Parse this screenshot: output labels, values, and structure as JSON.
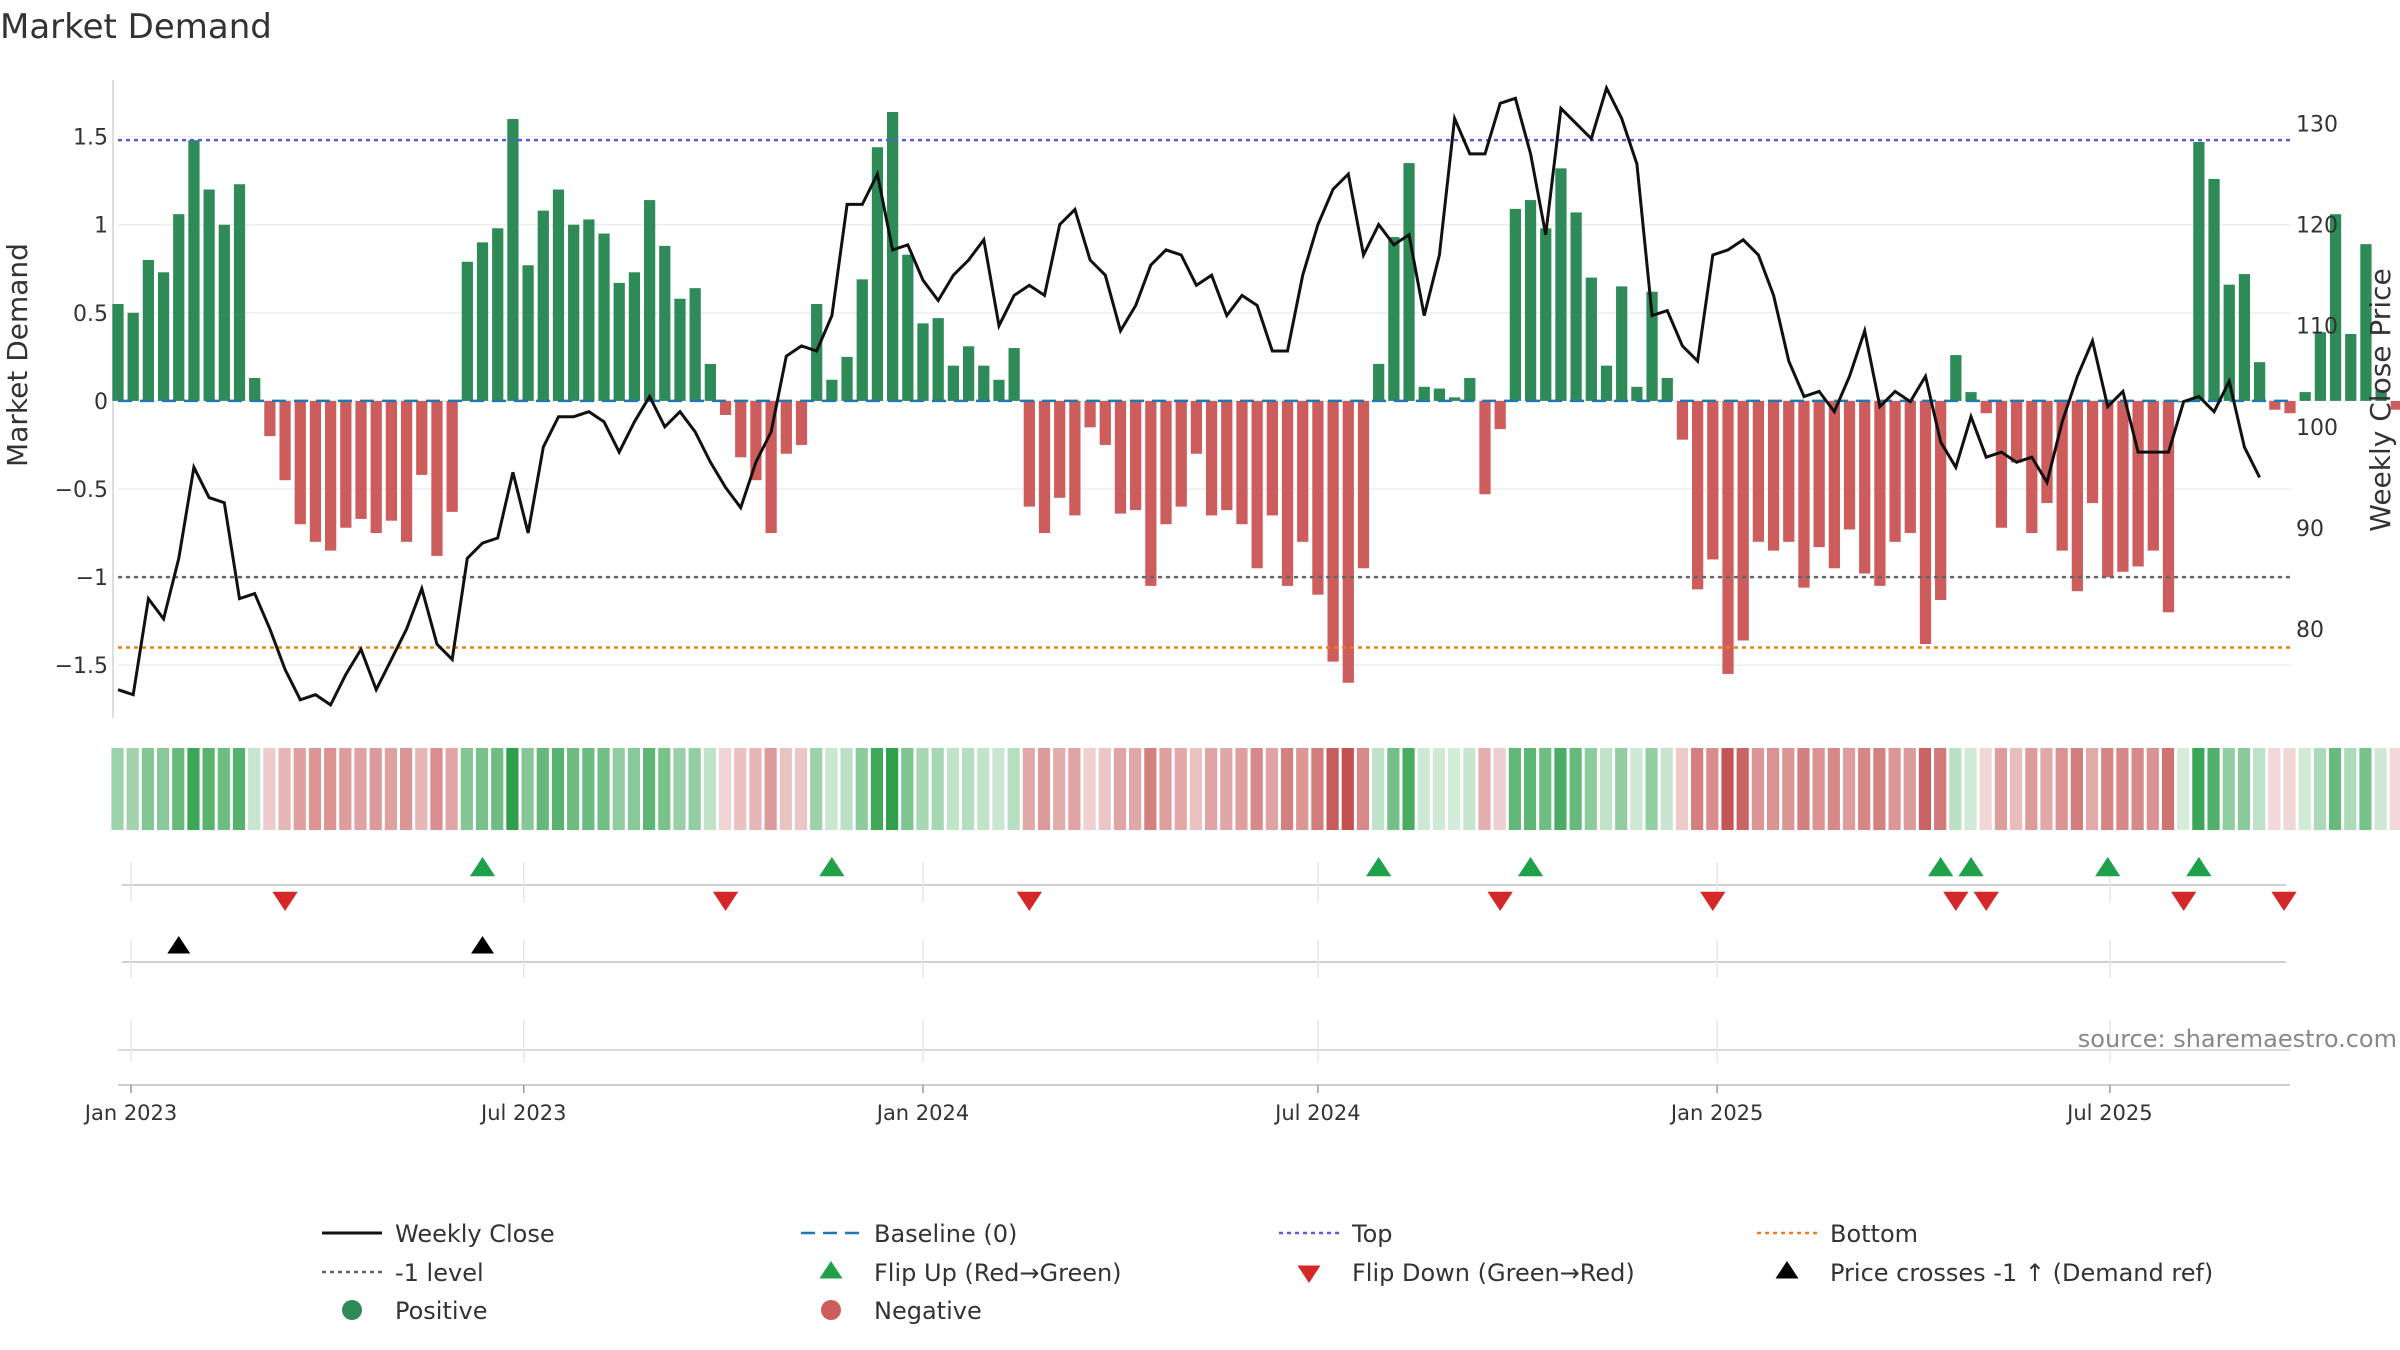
{
  "chart_data": {
    "type": "bar",
    "title": "Market Demand",
    "ylabel": "Market Demand",
    "ylabel_right": "Weekly Close Price",
    "ylim": [
      -1.8,
      1.85
    ],
    "ylim_right": [
      71.2,
      134.8
    ],
    "yticks": [
      1.5,
      1,
      0.5,
      0,
      -0.5,
      -1,
      -1.5
    ],
    "yticks_labels": [
      "1.5",
      "1",
      "0.5",
      "0",
      "−0.5",
      "−1",
      "−1.5"
    ],
    "yticks_right": [
      130,
      120,
      110,
      100,
      90,
      80
    ],
    "top_level": 1.48,
    "bottom_level": -1.4,
    "minus1_level": -1.0,
    "x_start": "2022-12-26",
    "x_end": "2025-09-22",
    "x_ticks": [
      {
        "date": "2023-01-01",
        "label": "Jan 2023"
      },
      {
        "date": "2023-07-01",
        "label": "Jul 2023"
      },
      {
        "date": "2024-01-01",
        "label": "Jan 2024"
      },
      {
        "date": "2024-07-01",
        "label": "Jul 2024"
      },
      {
        "date": "2025-01-01",
        "label": "Jan 2025"
      },
      {
        "date": "2025-07-01",
        "label": "Jul 2025"
      }
    ],
    "demand": [
      0.55,
      0.5,
      0.8,
      0.73,
      1.06,
      1.48,
      1.2,
      1.0,
      1.23,
      0.13,
      -0.2,
      -0.45,
      -0.7,
      -0.8,
      -0.85,
      -0.72,
      -0.67,
      -0.75,
      -0.68,
      -0.8,
      -0.42,
      -0.88,
      -0.63,
      0.79,
      0.9,
      0.98,
      1.6,
      0.77,
      1.08,
      1.2,
      1.0,
      1.03,
      0.95,
      0.67,
      0.73,
      1.14,
      0.88,
      0.58,
      0.64,
      0.21,
      -0.08,
      -0.32,
      -0.45,
      -0.75,
      -0.3,
      -0.25,
      0.55,
      0.12,
      0.25,
      0.69,
      1.44,
      1.64,
      0.83,
      0.44,
      0.47,
      0.2,
      0.31,
      0.2,
      0.12,
      0.3,
      -0.6,
      -0.75,
      -0.55,
      -0.65,
      -0.15,
      -0.25,
      -0.64,
      -0.62,
      -1.05,
      -0.7,
      -0.6,
      -0.3,
      -0.65,
      -0.62,
      -0.7,
      -0.95,
      -0.65,
      -1.05,
      -0.8,
      -1.1,
      -1.48,
      -1.6,
      -0.95,
      0.21,
      0.93,
      1.35,
      0.08,
      0.07,
      0.02,
      0.13,
      -0.53,
      -0.16,
      1.09,
      1.14,
      0.98,
      1.32,
      1.07,
      0.7,
      0.2,
      0.65,
      0.08,
      0.62,
      0.13,
      -0.22,
      -1.07,
      -0.9,
      -1.55,
      -1.36,
      -0.8,
      -0.85,
      -0.8,
      -1.06,
      -0.83,
      -0.95,
      -0.73,
      -0.98,
      -1.05,
      -0.8,
      -0.75,
      -1.38,
      -1.13,
      0.26,
      0.05,
      -0.07,
      -0.72,
      -0.35,
      -0.75,
      -0.58,
      -0.85,
      -1.08,
      -0.58,
      -1.0,
      -0.97,
      -0.94,
      -0.85,
      -1.2,
      0.0,
      1.47,
      1.26,
      0.66,
      0.72,
      0.22,
      -0.05,
      -0.07,
      0.05,
      0.39,
      1.06,
      0.38,
      0.89,
      0.06,
      -0.05
    ],
    "price_start": "2022-12-26",
    "price": [
      74,
      73.5,
      83,
      81,
      87,
      96,
      93,
      92.5,
      83,
      83.5,
      80,
      76,
      73,
      73.5,
      72.5,
      75.5,
      78,
      74,
      77,
      80,
      84,
      78.5,
      77,
      87,
      88.5,
      89,
      95.5,
      89.5,
      98,
      101,
      101,
      101.5,
      100.5,
      97.5,
      100.5,
      103,
      100,
      101.5,
      99.5,
      96.5,
      94,
      92,
      96.5,
      99.5,
      107,
      108,
      107.5,
      111,
      122,
      122,
      125,
      117.5,
      118,
      114.5,
      112.5,
      115,
      116.5,
      118.5,
      110,
      113,
      114,
      113,
      120,
      121.5,
      116.5,
      115,
      109.5,
      112,
      116,
      117.5,
      117,
      114,
      115,
      111,
      113,
      112,
      107.5,
      107.5,
      115,
      120,
      123.5,
      125,
      117,
      120,
      118,
      119,
      111,
      117,
      130.5,
      127,
      127,
      132,
      132.5,
      127,
      119,
      131.5,
      130,
      128.5,
      133.5,
      130.5,
      126,
      111,
      111.5,
      108,
      106.5,
      117,
      117.5,
      118.5,
      117,
      113,
      106.5,
      103,
      103.5,
      101.5,
      105,
      109.5,
      102,
      103.5,
      102.5,
      105,
      98.5,
      96,
      101,
      97,
      97.5,
      96.5,
      97,
      94.5,
      100.5,
      105,
      108.5,
      102,
      103.5,
      97.5,
      97.5,
      97.5,
      102.5,
      103,
      101.5,
      104.5,
      98,
      95
    ],
    "flip_up_dates": [
      "2023-06-12",
      "2023-11-20",
      "2024-07-29",
      "2024-10-07",
      "2025-04-14",
      "2025-04-28",
      "2025-06-30",
      "2025-08-11"
    ],
    "flip_down_dates": [
      "2023-03-13",
      "2023-10-02",
      "2024-02-19",
      "2024-09-23",
      "2024-12-30",
      "2025-04-21",
      "2025-05-05",
      "2025-08-04",
      "2025-09-22"
    ],
    "price_cross_dates": [
      "2023-01-23",
      "2023-06-12"
    ],
    "source": "source: sharemaestro.com",
    "colors": {
      "positive": "#2e8b57",
      "negative": "#cd5c5c",
      "price": "#111111",
      "baseline": "#1f77b4",
      "top": "#5b5bd6",
      "bottom": "#ee7f1a",
      "minus1": "#666666",
      "flip_up": "#1fa04a",
      "flip_down": "#d62728",
      "cross": "#000000"
    }
  },
  "legend": [
    {
      "key": "price",
      "label": "Weekly Close",
      "marker": "line"
    },
    {
      "key": "baseline",
      "label": "Baseline (0)",
      "marker": "dash"
    },
    {
      "key": "top",
      "label": "Top",
      "marker": "dot"
    },
    {
      "key": "bottom",
      "label": "Bottom",
      "marker": "dot"
    },
    {
      "key": "minus1",
      "label": "-1 level",
      "marker": "dot"
    },
    {
      "key": "flip_up",
      "label": "Flip Up (Red→Green)",
      "marker": "tri-up"
    },
    {
      "key": "flip_down",
      "label": "Flip Down (Green→Red)",
      "marker": "tri-down"
    },
    {
      "key": "cross",
      "label": "Price crosses -1 ↑ (Demand ref)",
      "marker": "tri-up"
    },
    {
      "key": "positive",
      "label": "Positive",
      "marker": "circle"
    },
    {
      "key": "negative",
      "label": "Negative",
      "marker": "circle"
    }
  ]
}
